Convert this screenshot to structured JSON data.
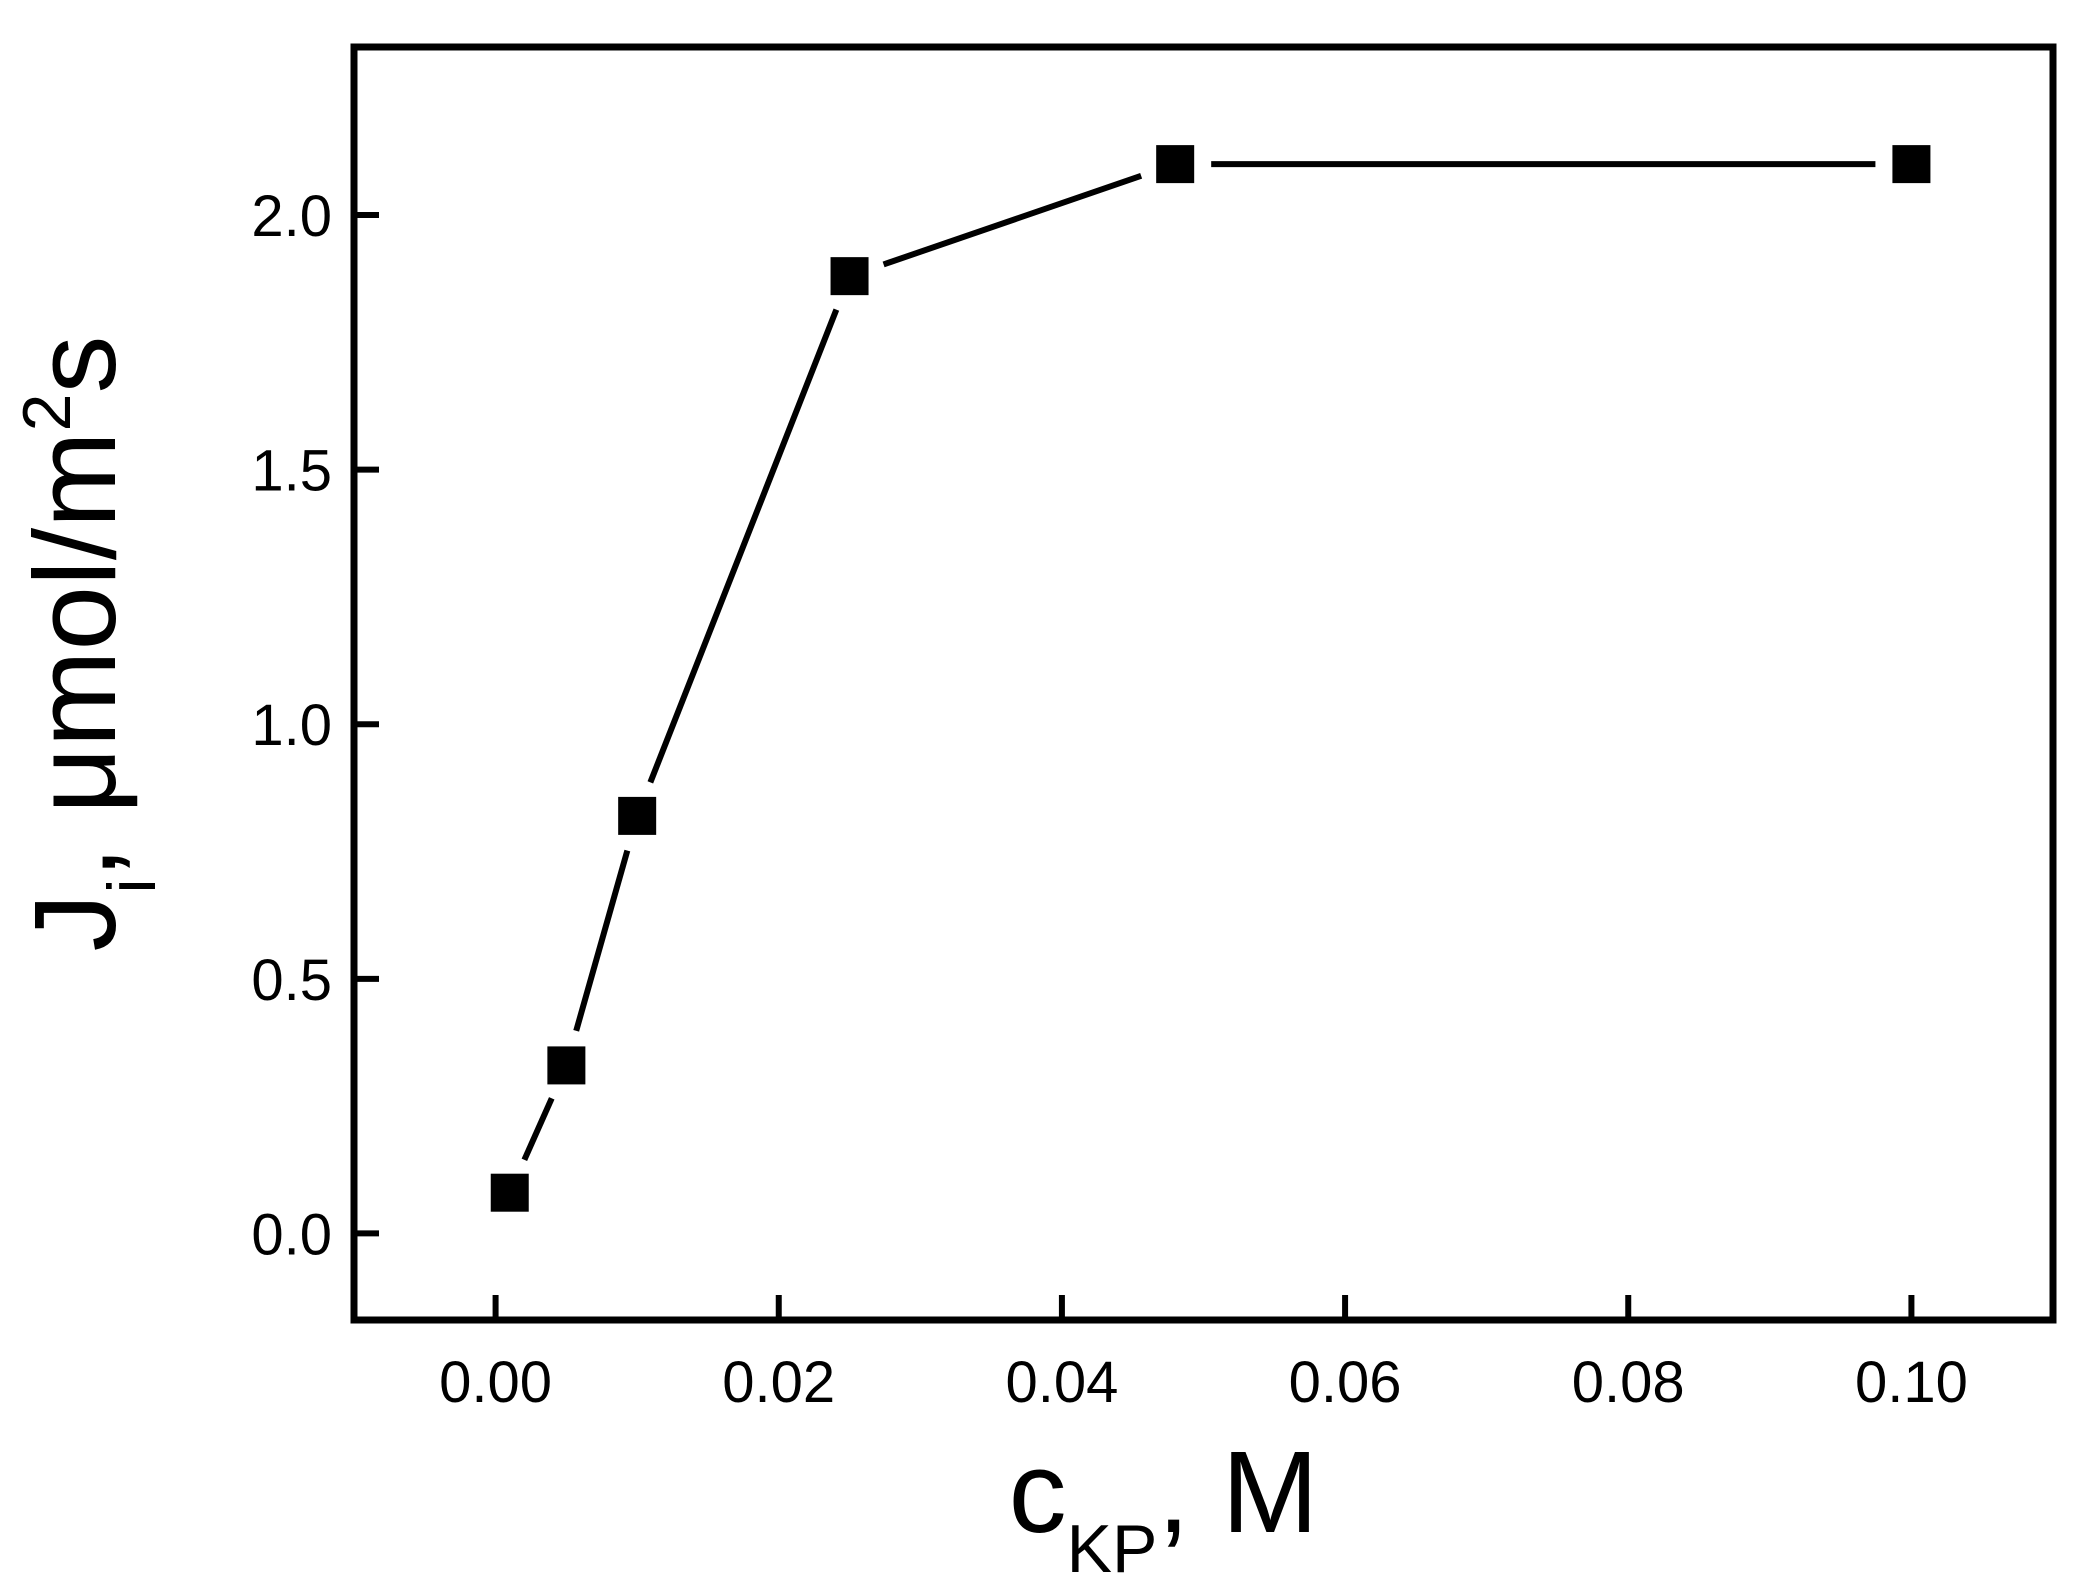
{
  "chart_data": {
    "type": "line",
    "title": "",
    "xlabel": {
      "main": "c",
      "sub": "KP",
      "suffix": ", M"
    },
    "ylabel": {
      "main": "J",
      "sub": "i",
      "mid": ", μmol/m",
      "sup": "2",
      "suffix": "s"
    },
    "xlim": [
      -0.01,
      0.11
    ],
    "ylim": [
      -0.17,
      2.33
    ],
    "xticks": [
      0.0,
      0.02,
      0.04,
      0.06,
      0.08,
      0.1
    ],
    "xtick_labels": [
      "0.00",
      "0.02",
      "0.04",
      "0.06",
      "0.08",
      "0.10"
    ],
    "yticks": [
      0.0,
      0.5,
      1.0,
      1.5,
      2.0
    ],
    "ytick_labels": [
      "0.0",
      "0.5",
      "1.0",
      "1.5",
      "2.0"
    ],
    "grid": false,
    "legend": "none",
    "marker": "square",
    "color": "#000000",
    "series": [
      {
        "x": [
          0.001,
          0.005,
          0.01,
          0.025,
          0.048,
          0.1
        ],
        "y": [
          0.08,
          0.33,
          0.82,
          1.88,
          2.1,
          2.1
        ]
      }
    ]
  }
}
